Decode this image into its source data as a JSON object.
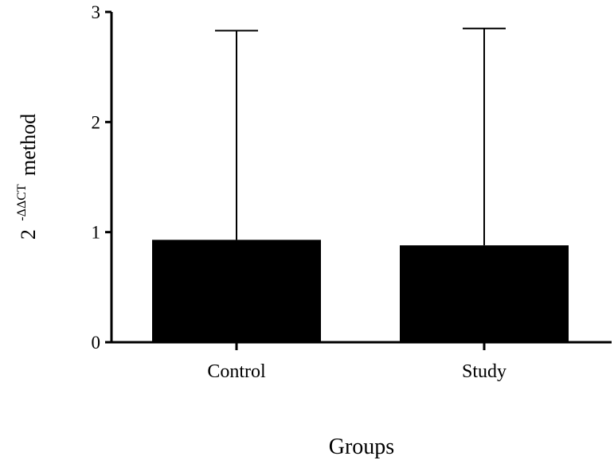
{
  "chart_data": {
    "type": "bar",
    "categories": [
      "Control",
      "Study"
    ],
    "values": [
      0.93,
      0.88
    ],
    "error_upper": [
      2.83,
      2.85
    ],
    "ylim": [
      0,
      3
    ],
    "yticks": [
      "0",
      "1",
      "2",
      "3"
    ],
    "xlabel": "Groups",
    "ylabel": {
      "base": "2",
      "superscript": "-ΔΔCT",
      "suffix": "method"
    },
    "grid": false,
    "legend": "none",
    "bar_color": "#000000"
  }
}
